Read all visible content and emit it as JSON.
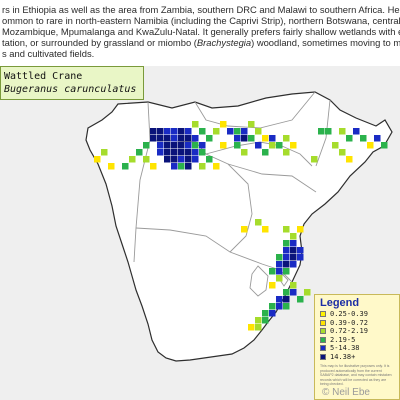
{
  "intro": {
    "line1": "rs in Ethiopia as well as the area from Zambia, southern DRC and Malawi to southern Africa. Here",
    "line2": "ommon to rare in north-eastern Namibia (including the Caprivi Strip), northern Botswana, central Zimb",
    "line3a": "Mozambique, Mpumalanga and KwaZulu-Natal. It generally prefers fairly shallow wetlands with eme",
    "line4a": "tation, or surrounded by grassland or miombo (",
    "line4b": "Brachystegia",
    "line4c": ") woodland, sometimes moving to man-",
    "line5": "s and cultivated fields."
  },
  "species": {
    "common_name": "Wattled Crane",
    "scientific_name": "Bugeranus carunculatus"
  },
  "legend": {
    "title": "Legend",
    "items": [
      {
        "label": "0.25-0.39",
        "color": "#fff200"
      },
      {
        "label": "0.39-0.72",
        "color": "#ffe400"
      },
      {
        "label": "0.72-2.19",
        "color": "#a6dc2c"
      },
      {
        "label": "2.19-5",
        "color": "#2bb24c"
      },
      {
        "label": "5-14.38",
        "color": "#1a2bc4"
      },
      {
        "label": "14.38+",
        "color": "#0a137a"
      }
    ],
    "note": "This map is for illustrative purposes only. It is produced automatically from the current SABAP2 database, and may contain mistaken records which will be corrected as they are being checked."
  },
  "credit": "© Neil Ebe",
  "colors": {
    "land": "#ffffff",
    "outside": "#efefef",
    "border": "#2e2e2e",
    "inner_border": "#9a9a9a"
  }
}
